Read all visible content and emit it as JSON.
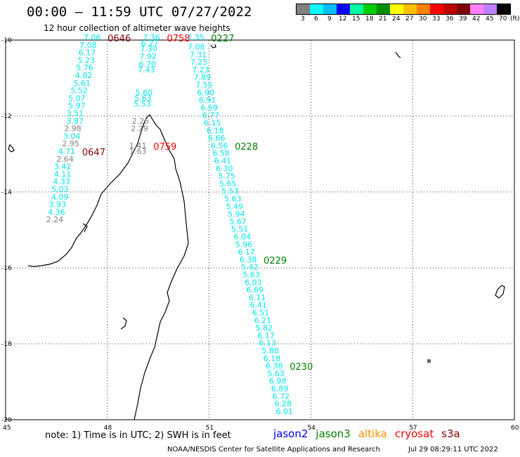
{
  "header": {
    "title": "00:00 – 11:59 UTC 07/27/2022",
    "subtitle": "12 hour collection of altimeter wave heights"
  },
  "colorbar": {
    "unit": "(ft)",
    "labels": [
      "3",
      "6",
      "9",
      "12",
      "15",
      "18",
      "21",
      "24",
      "27",
      "30",
      "33",
      "36",
      "39",
      "42",
      "45",
      "70"
    ],
    "colors": [
      "#808080",
      "#00ffff",
      "#00bfff",
      "#0000ff",
      "#00ffa0",
      "#00d000",
      "#009000",
      "#ffff00",
      "#ffc000",
      "#ff8000",
      "#ff0000",
      "#c00000",
      "#800000",
      "#ff80ff",
      "#c080ff",
      "#000000"
    ]
  },
  "axes": {
    "lat_labels": [
      "-10",
      "-12",
      "-14",
      "-16",
      "-18",
      "-20"
    ],
    "lon_labels": [
      "45",
      "48",
      "51",
      "54",
      "57",
      "60"
    ]
  },
  "tracks": [
    {
      "time": "0646",
      "color": "#800000",
      "points": [
        {
          "lat": -10.0,
          "lon": 47.55,
          "v": "7.06",
          "c": "#00e5ee"
        },
        {
          "lat": -10.2,
          "lon": 47.43,
          "v": "7.08",
          "c": "#00e5ee"
        },
        {
          "lat": -10.4,
          "lon": 47.4,
          "v": "6.17",
          "c": "#00e5ee"
        },
        {
          "lat": -10.6,
          "lon": 47.38,
          "v": "5.23",
          "c": "#00e5ee"
        },
        {
          "lat": -10.8,
          "lon": 47.33,
          "v": "5.76",
          "c": "#00e5ee"
        },
        {
          "lat": -11.0,
          "lon": 47.3,
          "v": "4.82",
          "c": "#00e5ee"
        },
        {
          "lat": -11.2,
          "lon": 47.25,
          "v": "5.61",
          "c": "#00e5ee"
        },
        {
          "lat": -11.4,
          "lon": 47.17,
          "v": "5.52",
          "c": "#00e5ee"
        },
        {
          "lat": -11.6,
          "lon": 47.1,
          "v": "5.07",
          "c": "#00e5ee"
        },
        {
          "lat": -11.8,
          "lon": 47.1,
          "v": "5.97",
          "c": "#00e5ee"
        },
        {
          "lat": -12.0,
          "lon": 47.05,
          "v": "3.51",
          "c": "#00e5ee"
        },
        {
          "lat": -12.2,
          "lon": 47.05,
          "v": "3.87",
          "c": "#00e5ee"
        },
        {
          "lat": -12.4,
          "lon": 46.98,
          "v": "2.98",
          "c": "#808080"
        },
        {
          "lat": -12.6,
          "lon": 46.95,
          "v": "3.04",
          "c": "#00e5ee"
        },
        {
          "lat": -12.8,
          "lon": 46.92,
          "v": "2.95",
          "c": "#808080"
        }
      ]
    },
    {
      "time": "0647",
      "color": "#800000",
      "points": [
        {
          "lat": -13.0,
          "lon": 46.8,
          "v": "4.71",
          "c": "#00e5ee"
        },
        {
          "lat": -13.2,
          "lon": 46.75,
          "v": "2.64",
          "c": "#808080"
        },
        {
          "lat": -13.4,
          "lon": 46.68,
          "v": "3.42",
          "c": "#00e5ee"
        },
        {
          "lat": -13.6,
          "lon": 46.68,
          "v": "4.11",
          "c": "#00e5ee"
        },
        {
          "lat": -13.8,
          "lon": 46.65,
          "v": "4.33",
          "c": "#00e5ee"
        },
        {
          "lat": -14.0,
          "lon": 46.6,
          "v": "5.03",
          "c": "#00e5ee"
        },
        {
          "lat": -14.2,
          "lon": 46.6,
          "v": "4.09",
          "c": "#00e5ee"
        },
        {
          "lat": -14.4,
          "lon": 46.53,
          "v": "3.93",
          "c": "#00e5ee"
        },
        {
          "lat": -14.6,
          "lon": 46.5,
          "v": "4.36",
          "c": "#00e5ee"
        },
        {
          "lat": -14.8,
          "lon": 46.45,
          "v": "2.24",
          "c": "#808080"
        }
      ]
    },
    {
      "time": "0758",
      "color": "#ff0000",
      "points": [
        {
          "lat": -10.0,
          "lon": 49.3,
          "v": "7.36",
          "c": "#00e5ee"
        },
        {
          "lat": -10.15,
          "lon": 49.25,
          "v": "6.27",
          "c": "#00e5ee"
        },
        {
          "lat": -10.3,
          "lon": 49.22,
          "v": "7.30",
          "c": "#00e5ee"
        },
        {
          "lat": -10.5,
          "lon": 49.2,
          "v": "7.92",
          "c": "#00e5ee"
        },
        {
          "lat": -10.7,
          "lon": 49.18,
          "v": "6.70",
          "c": "#00e5ee"
        },
        {
          "lat": -10.85,
          "lon": 49.15,
          "v": "7.43",
          "c": "#00e5ee"
        },
        {
          "lat": -11.45,
          "lon": 49.08,
          "v": "5.60",
          "c": "#00e5ee"
        },
        {
          "lat": -11.6,
          "lon": 49.05,
          "v": "5.63",
          "c": "#00e5ee"
        },
        {
          "lat": -11.75,
          "lon": 49.03,
          "v": "5.53",
          "c": "#00e5ee"
        },
        {
          "lat": -12.2,
          "lon": 48.98,
          "v": "2.25",
          "c": "#808080"
        },
        {
          "lat": -12.4,
          "lon": 48.95,
          "v": "2.29",
          "c": "#808080"
        }
      ]
    },
    {
      "time": "0759",
      "color": "#ff0000",
      "points": [
        {
          "lat": -12.85,
          "lon": 48.9,
          "v": "1.41",
          "c": "#808080"
        },
        {
          "lat": -13.0,
          "lon": 48.9,
          "v": "1.63",
          "c": "#808080"
        }
      ]
    },
    {
      "time": "0227",
      "color": "#008000",
      "points": [
        {
          "lat": -10.0,
          "lon": 50.6,
          "v": "7.35",
          "c": "#00e5ee"
        },
        {
          "lat": -10.25,
          "lon": 50.62,
          "v": "7.08",
          "c": "#00e5ee"
        },
        {
          "lat": -10.45,
          "lon": 50.68,
          "v": "7.31",
          "c": "#00e5ee"
        },
        {
          "lat": -10.65,
          "lon": 50.7,
          "v": "7.25",
          "c": "#00e5ee"
        },
        {
          "lat": -10.85,
          "lon": 50.75,
          "v": "7.23",
          "c": "#00e5ee"
        },
        {
          "lat": -11.05,
          "lon": 50.8,
          "v": "7.89",
          "c": "#00e5ee"
        },
        {
          "lat": -11.25,
          "lon": 50.85,
          "v": "7.55",
          "c": "#00e5ee"
        },
        {
          "lat": -11.45,
          "lon": 50.9,
          "v": "6.90",
          "c": "#00e5ee"
        },
        {
          "lat": -11.65,
          "lon": 50.95,
          "v": "6.91",
          "c": "#00e5ee"
        },
        {
          "lat": -11.85,
          "lon": 51.0,
          "v": "6.59",
          "c": "#00e5ee"
        },
        {
          "lat": -12.05,
          "lon": 51.05,
          "v": "6.77",
          "c": "#00e5ee"
        },
        {
          "lat": -12.25,
          "lon": 51.1,
          "v": "6.15",
          "c": "#00e5ee"
        },
        {
          "lat": -12.45,
          "lon": 51.18,
          "v": "6.18",
          "c": "#00e5ee"
        },
        {
          "lat": -12.65,
          "lon": 51.22,
          "v": "6.66",
          "c": "#00e5ee"
        }
      ]
    },
    {
      "time": "0228",
      "color": "#008000",
      "points": [
        {
          "lat": -12.85,
          "lon": 51.3,
          "v": "6.56",
          "c": "#00e5ee"
        },
        {
          "lat": -13.05,
          "lon": 51.35,
          "v": "6.58",
          "c": "#00e5ee"
        },
        {
          "lat": -13.25,
          "lon": 51.4,
          "v": "6.41",
          "c": "#00e5ee"
        },
        {
          "lat": -13.45,
          "lon": 51.45,
          "v": "6.30",
          "c": "#00e5ee"
        },
        {
          "lat": -13.65,
          "lon": 51.52,
          "v": "5.75",
          "c": "#00e5ee"
        },
        {
          "lat": -13.85,
          "lon": 51.55,
          "v": "5.65",
          "c": "#00e5ee"
        },
        {
          "lat": -14.05,
          "lon": 51.62,
          "v": "5.53",
          "c": "#00e5ee"
        },
        {
          "lat": -14.25,
          "lon": 51.7,
          "v": "5.63",
          "c": "#00e5ee"
        },
        {
          "lat": -14.45,
          "lon": 51.75,
          "v": "5.49",
          "c": "#00e5ee"
        },
        {
          "lat": -14.65,
          "lon": 51.8,
          "v": "5.94",
          "c": "#00e5ee"
        },
        {
          "lat": -14.85,
          "lon": 51.85,
          "v": "5.67",
          "c": "#00e5ee"
        },
        {
          "lat": -15.05,
          "lon": 51.9,
          "v": "5.51",
          "c": "#00e5ee"
        },
        {
          "lat": -15.25,
          "lon": 51.98,
          "v": "6.04",
          "c": "#00e5ee"
        },
        {
          "lat": -15.45,
          "lon": 52.02,
          "v": "5.96",
          "c": "#00e5ee"
        },
        {
          "lat": -15.65,
          "lon": 52.1,
          "v": "6.17",
          "c": "#00e5ee"
        }
      ]
    },
    {
      "time": "0229",
      "color": "#008000",
      "points": [
        {
          "lat": -15.85,
          "lon": 52.15,
          "v": "6.38",
          "c": "#00e5ee"
        },
        {
          "lat": -16.05,
          "lon": 52.2,
          "v": "5.42",
          "c": "#00e5ee"
        },
        {
          "lat": -16.25,
          "lon": 52.25,
          "v": "5.63",
          "c": "#00e5ee"
        },
        {
          "lat": -16.45,
          "lon": 52.3,
          "v": "6.03",
          "c": "#00e5ee"
        },
        {
          "lat": -16.65,
          "lon": 52.35,
          "v": "6.69",
          "c": "#00e5ee"
        },
        {
          "lat": -16.85,
          "lon": 52.42,
          "v": "6.11",
          "c": "#00e5ee"
        },
        {
          "lat": -17.05,
          "lon": 52.45,
          "v": "6.41",
          "c": "#00e5ee"
        },
        {
          "lat": -17.25,
          "lon": 52.52,
          "v": "6.51",
          "c": "#00e5ee"
        },
        {
          "lat": -17.45,
          "lon": 52.58,
          "v": "6.21",
          "c": "#00e5ee"
        },
        {
          "lat": -17.65,
          "lon": 52.62,
          "v": "5.82",
          "c": "#00e5ee"
        },
        {
          "lat": -17.85,
          "lon": 52.68,
          "v": "6.17",
          "c": "#00e5ee"
        },
        {
          "lat": -18.05,
          "lon": 52.72,
          "v": "6.13",
          "c": "#00e5ee"
        },
        {
          "lat": -18.25,
          "lon": 52.8,
          "v": "5.88",
          "c": "#00e5ee"
        },
        {
          "lat": -18.45,
          "lon": 52.85,
          "v": "6.18",
          "c": "#00e5ee"
        }
      ]
    },
    {
      "time": "0230",
      "color": "#008000",
      "points": [
        {
          "lat": -18.65,
          "lon": 52.92,
          "v": "6.38",
          "c": "#00e5ee"
        },
        {
          "lat": -18.85,
          "lon": 52.97,
          "v": "5.63",
          "c": "#00e5ee"
        },
        {
          "lat": -19.05,
          "lon": 53.02,
          "v": "6.98",
          "c": "#00e5ee"
        },
        {
          "lat": -19.25,
          "lon": 53.08,
          "v": "6.89",
          "c": "#00e5ee"
        },
        {
          "lat": -19.45,
          "lon": 53.12,
          "v": "6.72",
          "c": "#00e5ee"
        },
        {
          "lat": -19.65,
          "lon": 53.18,
          "v": "6.28",
          "c": "#00e5ee"
        },
        {
          "lat": -19.85,
          "lon": 53.22,
          "v": "6.01",
          "c": "#00e5ee"
        }
      ]
    }
  ],
  "footer": {
    "note": "note: 1) Time is in UTC; 2) SWH is in feet",
    "legend": [
      {
        "name": "jason2",
        "color": "#0000ff"
      },
      {
        "name": "jason3",
        "color": "#008000"
      },
      {
        "name": "altika",
        "color": "#ff8c00"
      },
      {
        "name": "cryosat",
        "color": "#ff0000"
      },
      {
        "name": "s3a",
        "color": "#800000"
      }
    ],
    "credit": "NOAA/NESDIS Center for Satellite Applications and Research",
    "timestamp": "Jul 29 08:29:11 UTC 2022"
  }
}
